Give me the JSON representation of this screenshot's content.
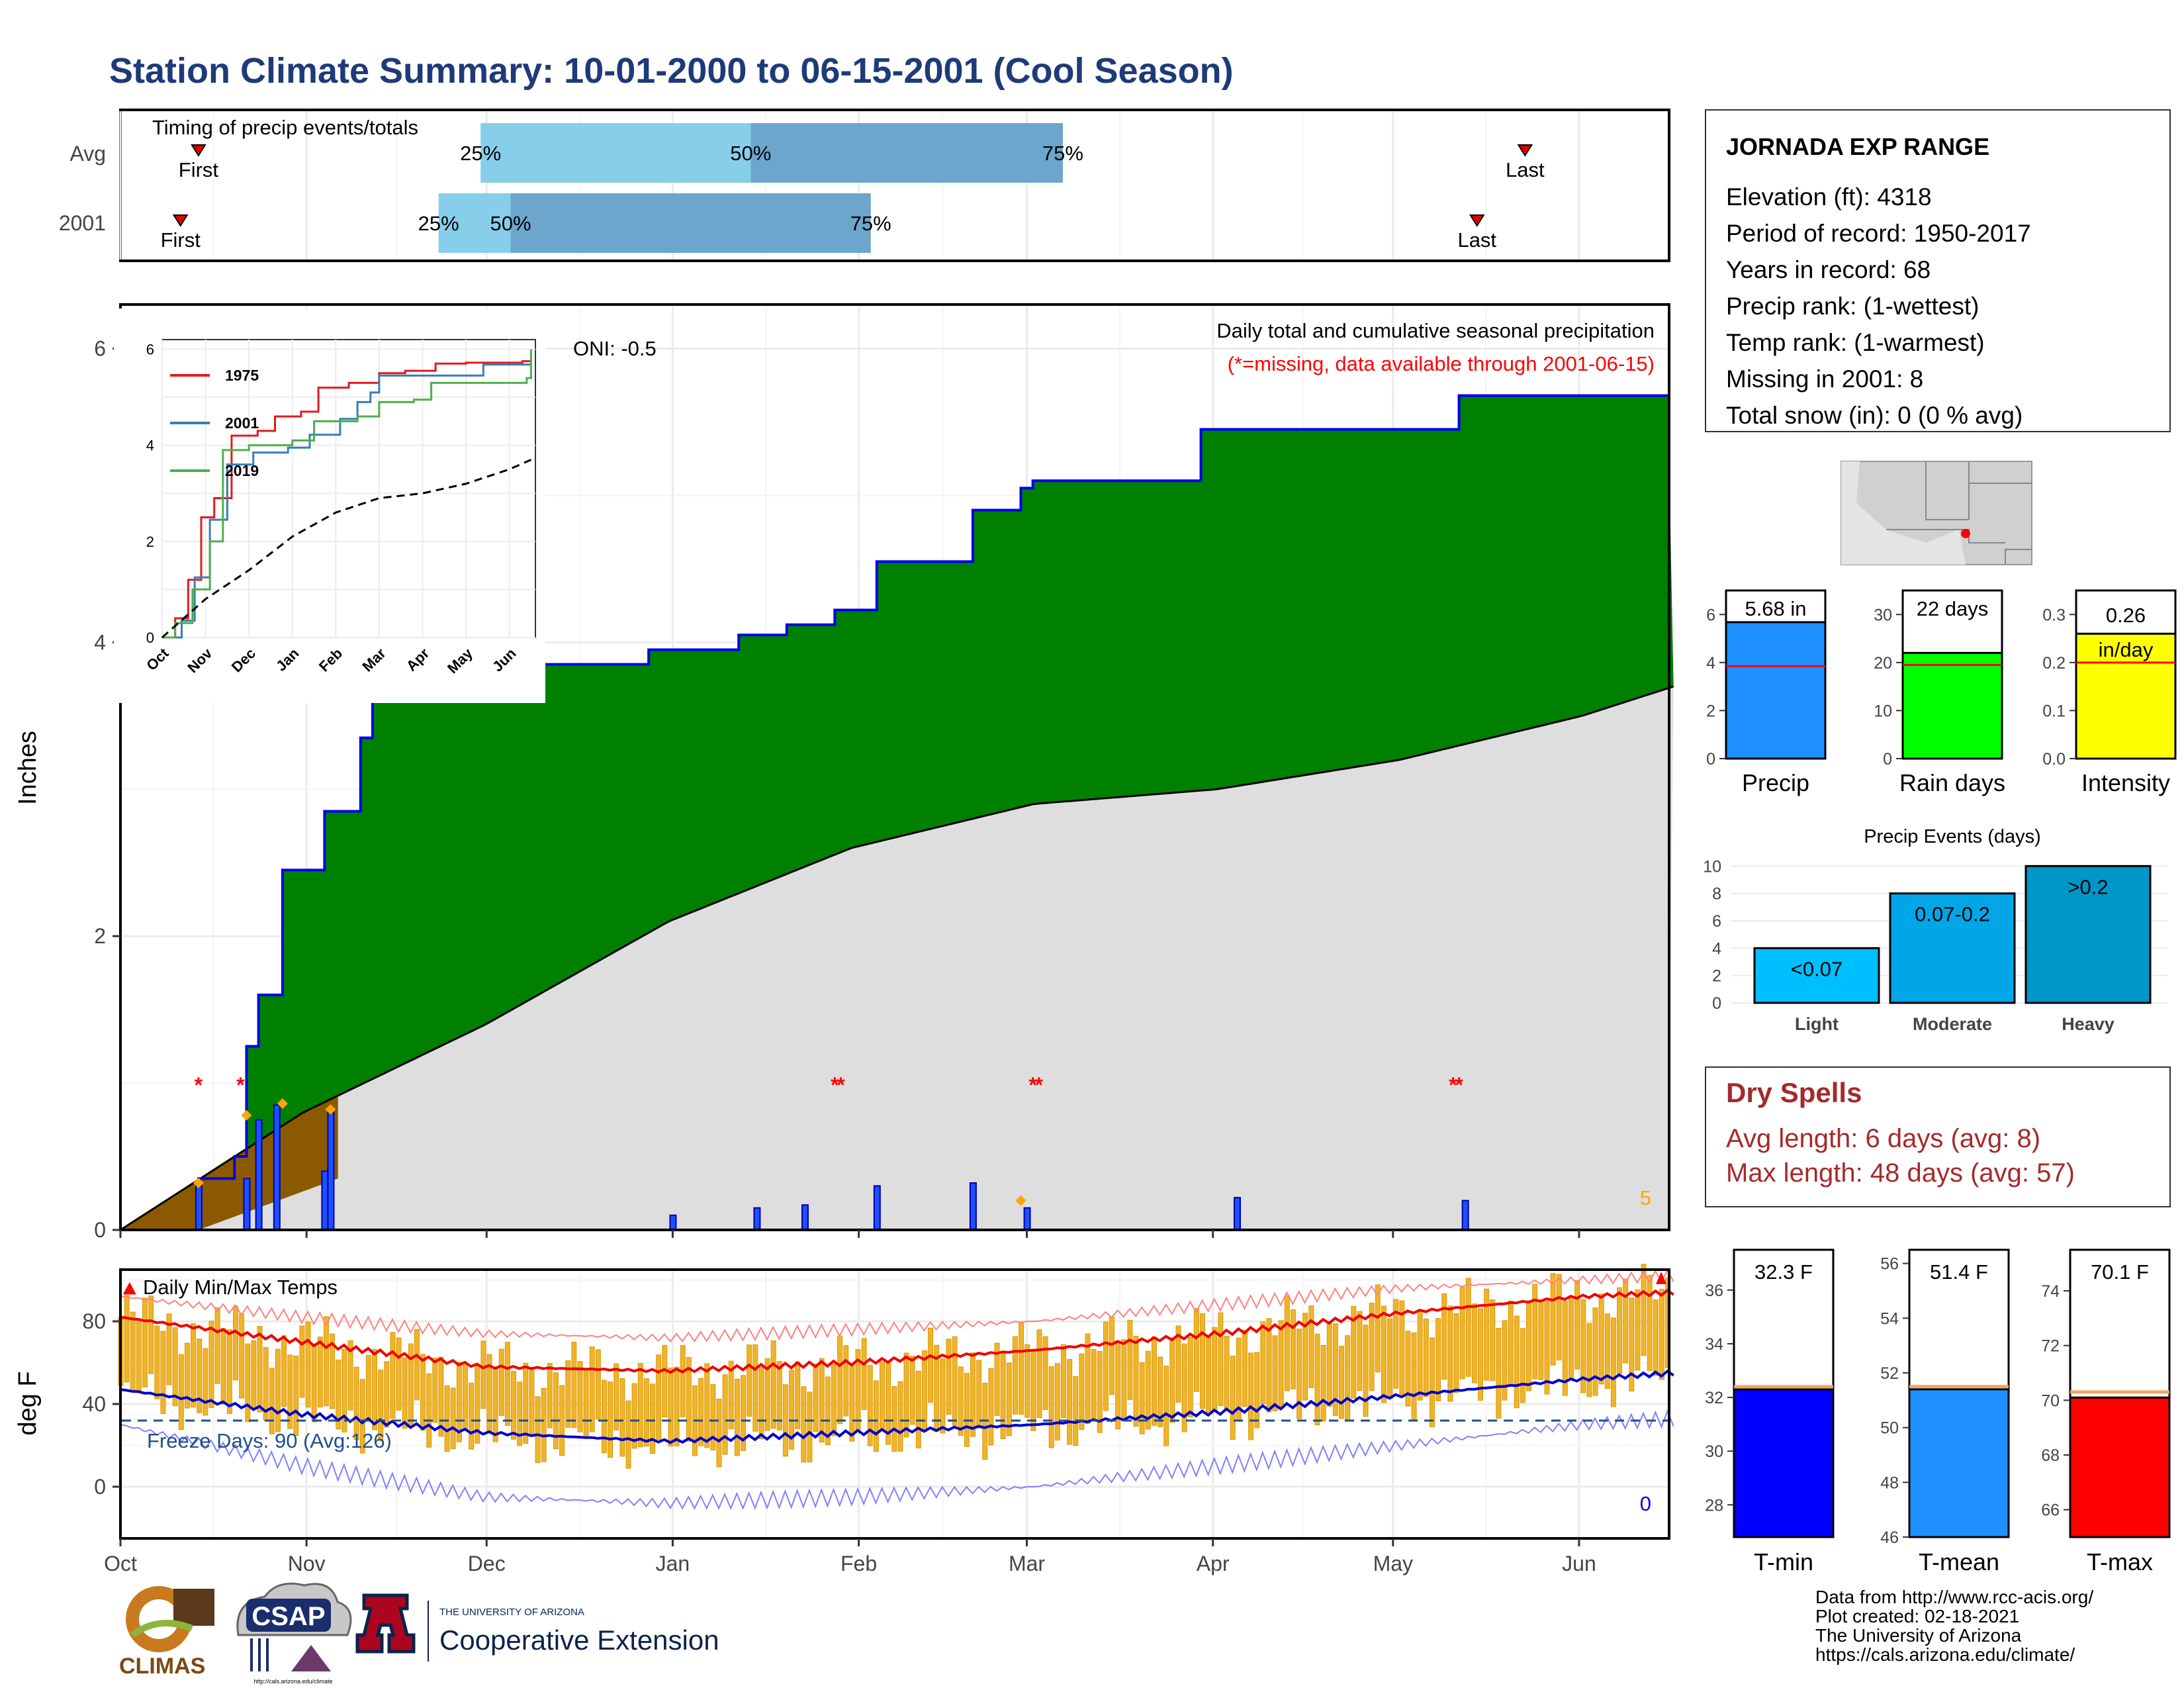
{
  "title": "Station Climate Summary: 10-01-2000 to 06-15-2001 (Cool Season)",
  "timing_panel": {
    "label": "Timing of precip events/totals",
    "rows": [
      "Avg",
      "2001"
    ],
    "first_label": "First",
    "last_label": "Last",
    "pct_labels": [
      "25%",
      "50%",
      "75%"
    ],
    "avg": {
      "first": "10-14",
      "p25": "11-30",
      "p50": "01-14",
      "p75": "03-07",
      "last": "05-23"
    },
    "y2001": {
      "first": "10-11",
      "p25": "11-23",
      "p50": "12-05",
      "p75": "02-03",
      "last": "05-15"
    }
  },
  "precip_panel": {
    "y_label": "Inches",
    "y_ticks": [
      "0",
      "2",
      "4",
      "6"
    ],
    "annotation_title": "Daily total and cumulative seasonal precipitation",
    "annotation_missing": "(*=missing, data available through 2001-06-15)",
    "oni": "ONI: -0.5",
    "count_label": "5",
    "colors": {
      "above_avg": "#008000",
      "below_avg": "#8B5A00",
      "avg_fill": "#DEDEDE",
      "cum_line": "#0000EE",
      "missing": "#FF0000"
    }
  },
  "inset_chart": {
    "y_ticks": [
      "0",
      "2",
      "4",
      "6"
    ],
    "x_ticks": [
      "Oct",
      "Nov",
      "Dec",
      "Jan",
      "Feb",
      "Mar",
      "Apr",
      "May",
      "Jun"
    ],
    "legend": [
      "1975",
      "2001",
      "2019"
    ],
    "colors": [
      "#E41A1C",
      "#377EB8",
      "#4DAF4A"
    ]
  },
  "temp_panel": {
    "y_label": "deg F",
    "y_ticks": [
      "0",
      "40",
      "80"
    ],
    "title": "Daily Min/Max Temps",
    "freeze_label": "Freeze Days: 90 (Avg:126)",
    "zero_count": "0",
    "x_ticks": [
      "Oct",
      "Nov",
      "Dec",
      "Jan",
      "Feb",
      "Mar",
      "Apr",
      "May",
      "Jun"
    ]
  },
  "station_info": {
    "name": "JORNADA EXP RANGE",
    "lines": [
      "Elevation (ft): 4318",
      "Period of record: 1950-2017",
      "Years in record: 68",
      "Precip rank:  (1-wettest)",
      "Temp rank:  (1-warmest)",
      "Missing in 2001: 8",
      "Total snow (in): 0 (0 % avg)"
    ]
  },
  "summary_bars": [
    {
      "label": "Precip",
      "value_label": "5.68 in",
      "value": 5.68,
      "avg": 3.85,
      "ylim": [
        0,
        7
      ],
      "ticks": [
        "0",
        "2",
        "4",
        "6"
      ],
      "color": "#1E90FF"
    },
    {
      "label": "Rain days",
      "value_label": "22 days",
      "value": 22,
      "avg": 19.5,
      "ylim": [
        0,
        35
      ],
      "ticks": [
        "0",
        "10",
        "20",
        "30"
      ],
      "color": "#00FF00"
    },
    {
      "label": "Intensity",
      "value_label": "0.26 in/day",
      "value": 0.26,
      "avg": 0.2,
      "ylim": [
        0,
        0.35
      ],
      "ticks": [
        "0.0",
        "0.1",
        "0.2",
        "0.3"
      ],
      "color": "#FFFF00"
    }
  ],
  "precip_events": {
    "title": "Precip Events (days)",
    "y_ticks": [
      "0",
      "2",
      "4",
      "6",
      "8",
      "10"
    ],
    "bars": [
      {
        "category": "Light",
        "label": "<0.07",
        "value": 4,
        "color": "#00BFFF"
      },
      {
        "category": "Moderate",
        "label": "0.07-0.2",
        "value": 8,
        "color": "#00A6E8"
      },
      {
        "category": "Heavy",
        "label": ">0.2",
        "value": 10,
        "color": "#0096C8"
      }
    ]
  },
  "dry_spells": {
    "title": "Dry Spells",
    "avg_length": "Avg length: 6 days (avg: 8)",
    "max_length": "Max length: 48 days (avg: 57)",
    "color": "#A52A2A"
  },
  "temp_summary": [
    {
      "label": "T-min",
      "value_label": "32.3 F",
      "value": 32.3,
      "avg": 32.4,
      "ylim": [
        26.8,
        37.5
      ],
      "ticks": [
        "28",
        "30",
        "32",
        "34",
        "36"
      ],
      "color": "#0000FF"
    },
    {
      "label": "T-mean",
      "value_label": "51.4 F",
      "value": 51.4,
      "avg": 51.5,
      "ylim": [
        46,
        56.5
      ],
      "ticks": [
        "46",
        "48",
        "50",
        "52",
        "54",
        "56"
      ],
      "color": "#1E90FF"
    },
    {
      "label": "T-max",
      "value_label": "70.1 F",
      "value": 70.1,
      "avg": 70.3,
      "ylim": [
        65,
        75.5
      ],
      "ticks": [
        "66",
        "68",
        "70",
        "72",
        "74"
      ],
      "color": "#FF0000"
    }
  ],
  "footer": {
    "climas": "CLIMAS",
    "csap": "CSAP",
    "csap_url": "http://cals.arizona.edu/climate",
    "ua_small": "THE UNIVERSITY OF ARIZONA",
    "ua_big": "Cooperative Extension",
    "credits": [
      "Data from http://www.rcc-acis.org/",
      "Plot created: 02-18-2021",
      "The University of Arizona",
      "https://cals.arizona.edu/climate/"
    ]
  },
  "chart_data": [
    {
      "type": "area",
      "title": "Daily total and cumulative seasonal precipitation",
      "ylabel": "Inches",
      "ylim": [
        0,
        6.3
      ],
      "x_range": [
        "2000-10-01",
        "2001-06-15"
      ],
      "series": [
        {
          "name": "2001",
          "x": [
            "2000-10-01",
            "2000-10-14",
            "2000-10-20",
            "2000-10-22",
            "2000-10-24",
            "2000-10-28",
            "2000-11-04",
            "2000-11-10",
            "2000-11-12",
            "2000-11-26",
            "2000-12-01",
            "2000-12-03",
            "2000-12-28",
            "2001-01-12",
            "2001-01-20",
            "2001-01-28",
            "2001-02-04",
            "2001-02-20",
            "2001-02-28",
            "2001-03-02",
            "2001-03-30",
            "2001-05-12",
            "2001-06-15"
          ],
          "values": [
            0,
            0.35,
            0.5,
            1.25,
            1.6,
            2.45,
            2.85,
            3.35,
            3.6,
            3.75,
            3.8,
            3.85,
            3.95,
            4.05,
            4.12,
            4.22,
            4.55,
            4.9,
            5.05,
            5.1,
            5.45,
            5.68,
            5.68
          ]
        }
      ],
      "daily_precip": {
        "x": [
          "2000-10-14",
          "2000-10-22",
          "2000-10-24",
          "2000-10-27",
          "2000-11-04",
          "2000-11-05",
          "2001-01-01",
          "2001-01-15",
          "2001-01-23",
          "2001-02-04",
          "2001-02-20",
          "2001-03-01",
          "2001-04-05",
          "2001-05-13"
        ],
        "values": [
          0.3,
          0.35,
          0.75,
          0.85,
          0.4,
          0.8,
          0.1,
          0.15,
          0.17,
          0.3,
          0.32,
          0.15,
          0.22,
          0.2
        ]
      },
      "missing_days": [
        "2000-10-14",
        "2000-10-21",
        "2001-01-28",
        "2001-01-29",
        "2001-03-02",
        "2001-03-03",
        "2001-05-11",
        "2001-05-12"
      ]
    },
    {
      "type": "line",
      "title": "",
      "ylim": [
        0,
        6.2
      ],
      "series": [
        {
          "name": "1975",
          "x_months": [
            0,
            0.3,
            0.6,
            0.9,
            1.2,
            1.6,
            2.2,
            2.6,
            3.2,
            3.6,
            4.3,
            5.0,
            5.6,
            6.3,
            7.0,
            8.3,
            8.5
          ],
          "values": [
            0,
            0.4,
            1.2,
            2.5,
            2.9,
            4.2,
            4.3,
            4.6,
            4.7,
            5.2,
            5.3,
            5.5,
            5.55,
            5.7,
            5.72,
            5.75,
            5.75
          ]
        },
        {
          "name": "2001",
          "x_months": [
            0,
            0.45,
            0.75,
            1.1,
            1.5,
            2.1,
            2.9,
            3.4,
            4.1,
            4.5,
            4.8,
            5.0,
            6.0,
            7.4,
            8.5
          ],
          "values": [
            0,
            0.35,
            1.25,
            2.45,
            3.6,
            3.85,
            3.95,
            4.22,
            4.55,
            4.9,
            5.1,
            5.45,
            5.45,
            5.68,
            5.68
          ]
        },
        {
          "name": "2019",
          "x_months": [
            0,
            0.3,
            0.7,
            1.1,
            1.4,
            2.0,
            3.0,
            3.5,
            4.5,
            5.0,
            5.8,
            6.2,
            7.5,
            8.4,
            8.5
          ],
          "values": [
            0,
            0.3,
            1.0,
            2.0,
            3.9,
            4.0,
            4.1,
            4.5,
            4.6,
            4.9,
            4.95,
            5.3,
            5.3,
            5.4,
            6.0
          ]
        },
        {
          "name": "avg",
          "x_months": [
            0,
            1,
            2,
            3,
            4,
            5,
            6,
            7,
            8,
            8.5
          ],
          "values": [
            0,
            0.8,
            1.4,
            2.1,
            2.6,
            2.9,
            3.0,
            3.2,
            3.5,
            3.7
          ]
        }
      ]
    },
    {
      "type": "bar",
      "title": "Daily Min/Max Temps",
      "ylabel": "deg F",
      "ylim": [
        -25,
        105
      ],
      "x_range": [
        "2000-10-01",
        "2001-06-15"
      ],
      "series": [
        {
          "name": "avg max",
          "x_months": [
            0,
            1,
            2,
            3,
            4,
            5,
            6,
            7,
            8,
            8.5
          ],
          "values": [
            82,
            70,
            58,
            56,
            60,
            66,
            74,
            84,
            92,
            94
          ]
        },
        {
          "name": "avg min",
          "x_months": [
            0,
            1,
            2,
            3,
            4,
            5,
            6,
            7,
            8,
            8.5
          ],
          "values": [
            47,
            35,
            26,
            22,
            26,
            30,
            36,
            44,
            52,
            55
          ]
        },
        {
          "name": "record max",
          "x_months": [
            0,
            1,
            2,
            3,
            4,
            5,
            6,
            7,
            8,
            8.5
          ],
          "values": [
            92,
            82,
            74,
            72,
            76,
            80,
            88,
            96,
            100,
            102
          ]
        },
        {
          "name": "record min",
          "x_months": [
            0,
            1,
            2,
            3,
            4,
            5,
            6,
            7,
            8,
            8.5
          ],
          "values": [
            30,
            10,
            -5,
            -8,
            -5,
            0,
            10,
            20,
            30,
            33
          ]
        }
      ],
      "freeze_threshold": 32
    },
    {
      "type": "bar",
      "title": "",
      "categories": [
        "Precip",
        "Rain days",
        "Intensity"
      ],
      "values": [
        5.68,
        22,
        0.26
      ]
    },
    {
      "type": "bar",
      "title": "Precip Events (days)",
      "categories": [
        "Light",
        "Moderate",
        "Heavy"
      ],
      "values": [
        4,
        8,
        10
      ]
    },
    {
      "type": "bar",
      "title": "",
      "categories": [
        "T-min",
        "T-mean",
        "T-max"
      ],
      "values": [
        32.3,
        51.4,
        70.1
      ]
    }
  ]
}
